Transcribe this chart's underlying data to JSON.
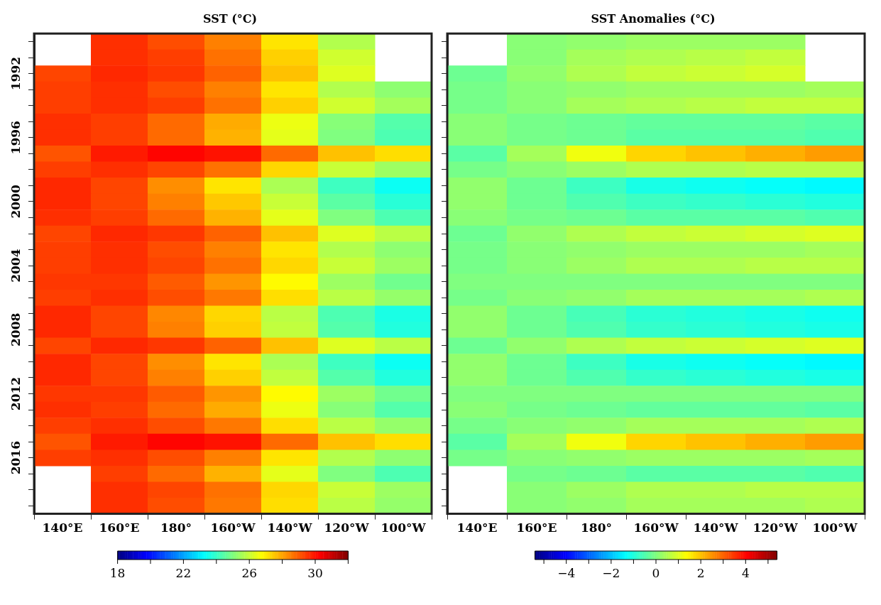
{
  "chart_data": [
    {
      "type": "heatmap",
      "title": "SST (°C)",
      "categories": [
        "140°E",
        "160°E",
        "180°",
        "160°W",
        "140°W",
        "120°W",
        "100°W"
      ],
      "y_categories": [
        null,
        null,
        "1992",
        null,
        null,
        null,
        "1996",
        null,
        null,
        null,
        "2000",
        null,
        null,
        null,
        "2004",
        null,
        null,
        null,
        "2008",
        null,
        null,
        null,
        "2012",
        null,
        null,
        null,
        "2016",
        null,
        null,
        null
      ],
      "cells": [
        [
          null,
          29.6,
          29.2,
          28.5,
          27.1,
          25.7,
          null
        ],
        [
          null,
          29.6,
          29.4,
          28.7,
          27.4,
          26.1,
          null
        ],
        [
          29.3,
          29.7,
          29.5,
          28.9,
          27.6,
          26.3,
          null
        ],
        [
          29.4,
          29.6,
          29.2,
          28.5,
          27.1,
          25.7,
          25.2
        ],
        [
          29.4,
          29.6,
          29.4,
          28.7,
          27.4,
          26.1,
          25.5
        ],
        [
          29.6,
          29.4,
          28.8,
          27.9,
          26.5,
          25.1,
          24.4
        ],
        [
          29.6,
          29.4,
          28.8,
          27.8,
          26.4,
          25.0,
          24.3
        ],
        [
          29.1,
          29.9,
          30.2,
          30.0,
          28.8,
          27.6,
          27.2
        ],
        [
          29.4,
          29.6,
          29.3,
          28.7,
          27.3,
          26.0,
          25.4
        ],
        [
          29.7,
          29.3,
          28.3,
          27.1,
          25.6,
          24.1,
          23.4
        ],
        [
          29.7,
          29.3,
          28.5,
          27.5,
          26.0,
          24.5,
          23.8
        ],
        [
          29.6,
          29.4,
          28.8,
          27.8,
          26.4,
          25.0,
          24.3
        ],
        [
          29.3,
          29.7,
          29.5,
          28.9,
          27.6,
          26.3,
          25.8
        ],
        [
          29.4,
          29.6,
          29.2,
          28.5,
          27.1,
          25.7,
          25.2
        ],
        [
          29.4,
          29.6,
          29.3,
          28.7,
          27.3,
          26.0,
          25.4
        ],
        [
          29.5,
          29.5,
          29.0,
          28.2,
          26.8,
          25.4,
          24.8
        ],
        [
          29.4,
          29.6,
          29.2,
          28.6,
          27.2,
          25.8,
          25.3
        ],
        [
          29.7,
          29.3,
          28.4,
          27.3,
          25.8,
          24.3,
          23.6
        ],
        [
          29.7,
          29.3,
          28.5,
          27.4,
          25.9,
          24.4,
          23.7
        ],
        [
          29.3,
          29.7,
          29.5,
          28.9,
          27.6,
          26.3,
          25.8
        ],
        [
          29.7,
          29.3,
          28.3,
          27.1,
          25.6,
          24.1,
          23.4
        ],
        [
          29.7,
          29.3,
          28.5,
          27.4,
          25.9,
          24.4,
          23.7
        ],
        [
          29.5,
          29.5,
          29.0,
          28.2,
          26.8,
          25.4,
          24.8
        ],
        [
          29.6,
          29.4,
          28.8,
          27.9,
          26.5,
          25.1,
          24.4
        ],
        [
          29.4,
          29.6,
          29.2,
          28.6,
          27.2,
          25.8,
          25.3
        ],
        [
          29.1,
          29.9,
          30.2,
          30.0,
          28.8,
          27.6,
          27.2
        ],
        [
          29.4,
          29.6,
          29.2,
          28.5,
          27.1,
          25.7,
          25.2
        ],
        [
          null,
          29.4,
          28.8,
          27.8,
          26.4,
          25.0,
          24.3
        ],
        [
          null,
          29.6,
          29.3,
          28.7,
          27.3,
          26.0,
          25.4
        ],
        [
          null,
          29.6,
          29.2,
          28.6,
          27.2,
          25.8,
          25.3
        ]
      ],
      "clim": [
        18,
        32
      ],
      "cticks": [
        18,
        {
          "value": 20,
          "label": null
        },
        22,
        {
          "value": 24,
          "label": null
        },
        26,
        {
          "value": 28,
          "label": null
        },
        30,
        {
          "value": 32,
          "label": null
        }
      ]
    },
    {
      "type": "heatmap",
      "title": "SST Anomalies (°C)",
      "tick_labels": "x",
      "categories": [
        "140°E",
        "160°E",
        "180°",
        "160°W",
        "140°W",
        "120°W",
        "100°W"
      ],
      "y_categories": [
        null,
        null,
        "1992",
        null,
        null,
        null,
        "1996",
        null,
        null,
        null,
        "2000",
        null,
        null,
        null,
        "2004",
        null,
        null,
        null,
        "2008",
        null,
        null,
        null,
        "2012",
        null,
        null,
        null,
        "2016",
        null,
        null,
        null
      ],
      "cells": [
        [
          null,
          0.1,
          0.2,
          0.3,
          0.3,
          0.3,
          null
        ],
        [
          null,
          0.1,
          0.4,
          0.5,
          0.6,
          0.7,
          null
        ],
        [
          -0.2,
          0.2,
          0.5,
          0.7,
          0.8,
          0.9,
          null
        ],
        [
          -0.1,
          0.1,
          0.2,
          0.3,
          0.3,
          0.3,
          0.4
        ],
        [
          -0.1,
          0.1,
          0.4,
          0.5,
          0.6,
          0.7,
          0.7
        ],
        [
          0.1,
          -0.1,
          -0.2,
          -0.3,
          -0.3,
          -0.3,
          -0.4
        ],
        [
          0.1,
          -0.1,
          -0.2,
          -0.4,
          -0.4,
          -0.4,
          -0.5
        ],
        [
          -0.4,
          0.4,
          1.2,
          1.8,
          2.0,
          2.2,
          2.4
        ],
        [
          -0.1,
          0.1,
          0.3,
          0.5,
          0.5,
          0.6,
          0.6
        ],
        [
          0.2,
          -0.2,
          -0.7,
          -1.1,
          -1.2,
          -1.3,
          -1.4
        ],
        [
          0.2,
          -0.2,
          -0.5,
          -0.7,
          -0.8,
          -0.9,
          -1.0
        ],
        [
          0.1,
          -0.1,
          -0.2,
          -0.4,
          -0.4,
          -0.4,
          -0.5
        ],
        [
          -0.2,
          0.2,
          0.5,
          0.7,
          0.8,
          0.9,
          1.0
        ],
        [
          -0.1,
          0.1,
          0.2,
          0.3,
          0.3,
          0.3,
          0.4
        ],
        [
          -0.1,
          0.1,
          0.3,
          0.5,
          0.5,
          0.6,
          0.6
        ],
        [
          0,
          0,
          0,
          0,
          0,
          0,
          0
        ],
        [
          -0.1,
          0.1,
          0.2,
          0.4,
          0.4,
          0.4,
          0.5
        ],
        [
          0.2,
          -0.2,
          -0.6,
          -0.9,
          -1.0,
          -1.1,
          -1.2
        ],
        [
          0.2,
          -0.2,
          -0.5,
          -0.8,
          -0.9,
          -1.0,
          -1.1
        ],
        [
          -0.2,
          0.2,
          0.5,
          0.7,
          0.8,
          0.9,
          1.0
        ],
        [
          0.2,
          -0.2,
          -0.7,
          -1.1,
          -1.2,
          -1.3,
          -1.4
        ],
        [
          0.2,
          -0.2,
          -0.5,
          -0.8,
          -0.9,
          -1.0,
          -1.1
        ],
        [
          0,
          0,
          0,
          0,
          0,
          0,
          0
        ],
        [
          0.1,
          -0.1,
          -0.2,
          -0.3,
          -0.3,
          -0.3,
          -0.4
        ],
        [
          -0.1,
          0.1,
          0.2,
          0.4,
          0.4,
          0.4,
          0.5
        ],
        [
          -0.4,
          0.4,
          1.2,
          1.8,
          2.0,
          2.2,
          2.4
        ],
        [
          -0.1,
          0.1,
          0.2,
          0.3,
          0.3,
          0.3,
          0.4
        ],
        [
          null,
          -0.1,
          -0.2,
          -0.4,
          -0.4,
          -0.4,
          -0.5
        ],
        [
          null,
          0.1,
          0.3,
          0.5,
          0.5,
          0.6,
          0.6
        ],
        [
          null,
          0.1,
          0.2,
          0.4,
          0.4,
          0.4,
          0.5
        ]
      ],
      "clim": [
        -5.4,
        5.4
      ],
      "cticks": [
        {
          "value": -5,
          "label": null
        },
        -4,
        {
          "value": -3,
          "label": null
        },
        -2,
        {
          "value": -1,
          "label": null
        },
        0,
        {
          "value": 1,
          "label": null
        },
        2,
        {
          "value": 3,
          "label": null
        },
        4,
        {
          "value": 5,
          "label": null
        }
      ]
    }
  ]
}
